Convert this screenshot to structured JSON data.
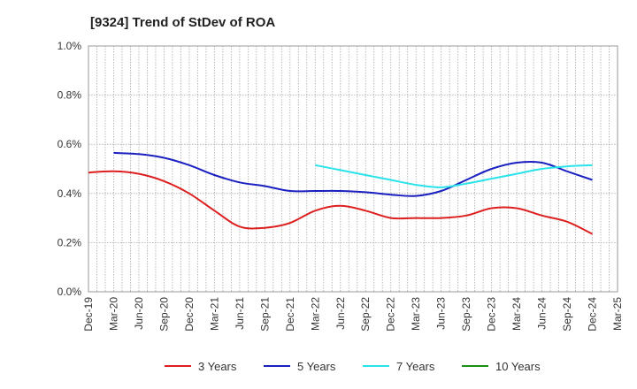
{
  "chart_data": {
    "type": "line",
    "title": "[9324]  Trend of StDev of ROA",
    "xlabel": "",
    "ylabel": "",
    "x_ticks": [
      "Dec-19",
      "Mar-20",
      "Jun-20",
      "Sep-20",
      "Dec-20",
      "Mar-21",
      "Jun-21",
      "Sep-21",
      "Dec-21",
      "Mar-22",
      "Jun-22",
      "Sep-22",
      "Dec-22",
      "Mar-23",
      "Jun-23",
      "Sep-23",
      "Dec-23",
      "Mar-24",
      "Jun-24",
      "Sep-24",
      "Dec-24",
      "Mar-25"
    ],
    "ylim": [
      0,
      1.0
    ],
    "y_ticks": [
      0,
      0.2,
      0.4,
      0.6,
      0.8,
      1.0
    ],
    "y_tick_labels": [
      "0.0%",
      "0.2%",
      "0.4%",
      "0.6%",
      "0.8%",
      "1.0%"
    ],
    "grid": true,
    "legend_position": "bottom",
    "series": [
      {
        "name": "3 Years",
        "color": "#dd1f1f",
        "x": [
          "Dec-19",
          "Mar-20",
          "Jun-20",
          "Sep-20",
          "Dec-20",
          "Mar-21",
          "Jun-21",
          "Sep-21",
          "Dec-21",
          "Mar-22",
          "Jun-22",
          "Sep-22",
          "Dec-22",
          "Mar-23",
          "Jun-23",
          "Sep-23",
          "Dec-23",
          "Mar-24",
          "Jun-24",
          "Sep-24",
          "Dec-24"
        ],
        "values": [
          0.485,
          0.49,
          0.48,
          0.45,
          0.4,
          0.33,
          0.265,
          0.26,
          0.28,
          0.33,
          0.35,
          0.33,
          0.3,
          0.3,
          0.3,
          0.31,
          0.34,
          0.34,
          0.31,
          0.285,
          0.235
        ]
      },
      {
        "name": "5 Years",
        "color": "#1a1fbf",
        "x": [
          "Mar-20",
          "Jun-20",
          "Sep-20",
          "Dec-20",
          "Mar-21",
          "Jun-21",
          "Sep-21",
          "Dec-21",
          "Mar-22",
          "Jun-22",
          "Sep-22",
          "Dec-22",
          "Mar-23",
          "Jun-23",
          "Sep-23",
          "Dec-23",
          "Mar-24",
          "Jun-24",
          "Sep-24",
          "Dec-24"
        ],
        "values": [
          0.565,
          0.56,
          0.545,
          0.515,
          0.475,
          0.445,
          0.43,
          0.41,
          0.41,
          0.41,
          0.405,
          0.395,
          0.39,
          0.41,
          0.455,
          0.5,
          0.525,
          0.525,
          0.49,
          0.455
        ]
      },
      {
        "name": "7 Years",
        "color": "#2ae3ea",
        "x": [
          "Mar-22",
          "Jun-22",
          "Sep-22",
          "Dec-22",
          "Mar-23",
          "Jun-23",
          "Sep-23",
          "Dec-23",
          "Mar-24",
          "Jun-24",
          "Sep-24",
          "Dec-24"
        ],
        "values": [
          0.515,
          0.495,
          0.475,
          0.455,
          0.435,
          0.425,
          0.44,
          0.46,
          0.48,
          0.5,
          0.51,
          0.515
        ]
      },
      {
        "name": "10 Years",
        "color": "#1a8f1a",
        "x": [],
        "values": []
      }
    ]
  }
}
